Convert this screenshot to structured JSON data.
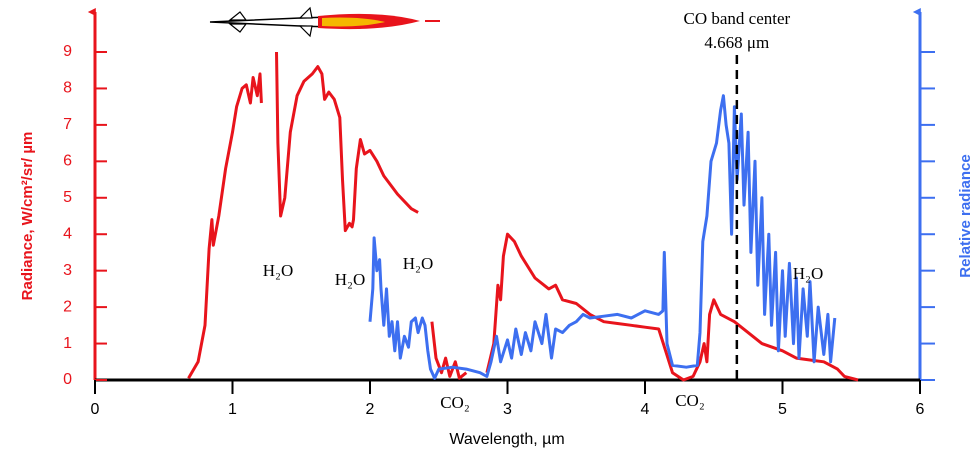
{
  "chart_data": {
    "type": "line",
    "y_label": "Radiance, W/cm²/sr/ µm",
    "y2_label": "Relative radiance",
    "x_label": "Wavelength, µm",
    "xlim": [
      0,
      6
    ],
    "xticks": [
      0,
      1,
      2,
      3,
      4,
      5,
      6
    ],
    "ylim": [
      0,
      9
    ],
    "yticks": [
      0,
      1,
      2,
      3,
      4,
      5,
      6,
      7,
      8,
      9
    ],
    "y2lim": [
      0,
      9
    ],
    "y2ticks": [
      0,
      1,
      2,
      3,
      4,
      5,
      6,
      7,
      8,
      9
    ],
    "y_color": "#e8141c",
    "y2_color": "#3d6ff0",
    "series": [
      {
        "color": "#e8141c",
        "x": [
          0.68,
          0.75,
          0.8,
          0.83,
          0.85,
          0.86,
          0.9,
          0.95,
          1.0,
          1.03,
          1.07,
          1.1,
          1.13,
          1.15,
          1.18,
          1.2,
          1.21,
          null,
          1.32,
          1.33,
          1.35,
          1.38,
          1.42,
          1.47,
          1.52,
          1.58,
          1.62,
          1.65,
          1.67,
          1.7,
          1.74,
          1.78,
          1.8,
          1.82,
          1.85,
          1.87,
          1.88,
          1.9,
          1.93,
          1.96,
          2.0,
          2.05,
          2.1,
          2.2,
          2.3,
          2.35,
          null,
          2.45,
          2.48,
          2.52,
          2.55,
          2.58,
          2.62,
          2.65,
          2.7,
          null,
          2.85,
          2.9,
          2.93,
          2.95,
          2.97,
          3.0,
          3.05,
          3.1,
          3.2,
          3.3,
          3.35,
          3.4,
          3.5,
          3.6,
          3.7,
          3.8,
          3.9,
          4.0,
          4.1,
          4.15,
          4.2,
          4.28,
          4.35,
          4.4,
          4.43,
          4.45,
          4.47,
          4.5,
          4.55,
          4.65,
          4.75,
          4.85,
          5.0,
          5.1,
          5.2,
          5.3,
          5.4,
          5.45,
          5.55
        ],
        "values": [
          0.05,
          0.5,
          1.5,
          3.6,
          4.4,
          3.7,
          4.5,
          5.8,
          6.8,
          7.5,
          8.0,
          8.1,
          7.6,
          8.3,
          7.8,
          8.4,
          7.6,
          null,
          9.0,
          6.5,
          4.5,
          5.0,
          6.8,
          7.8,
          8.2,
          8.4,
          8.6,
          8.4,
          7.7,
          7.9,
          7.7,
          7.2,
          5.5,
          4.1,
          4.3,
          4.2,
          4.4,
          5.8,
          6.6,
          6.2,
          6.3,
          6.0,
          5.6,
          5.1,
          4.7,
          4.6,
          null,
          1.6,
          0.6,
          0.2,
          0.6,
          0.1,
          0.5,
          0.05,
          0.2,
          null,
          0.2,
          1.0,
          2.6,
          2.2,
          3.4,
          4.0,
          3.8,
          3.4,
          2.8,
          2.5,
          2.6,
          2.2,
          2.1,
          1.8,
          1.6,
          1.55,
          1.5,
          1.45,
          1.4,
          0.8,
          0.2,
          0.0,
          0.1,
          0.5,
          1.0,
          0.5,
          1.8,
          2.2,
          1.8,
          1.6,
          1.3,
          1.0,
          0.8,
          0.6,
          0.55,
          0.5,
          0.3,
          0.1,
          0.0
        ]
      },
      {
        "color": "#3d6ff0",
        "axis": "y2",
        "x": [
          2.0,
          2.02,
          2.03,
          2.05,
          2.07,
          2.08,
          2.1,
          2.12,
          2.14,
          2.16,
          2.18,
          2.2,
          2.22,
          2.25,
          2.28,
          2.3,
          2.33,
          2.35,
          2.38,
          2.4,
          2.42,
          2.44,
          2.47,
          2.5,
          2.6,
          2.7,
          2.8,
          2.85,
          2.88,
          2.92,
          2.95,
          3.0,
          3.03,
          3.06,
          3.1,
          3.13,
          3.17,
          3.2,
          3.25,
          3.28,
          3.32,
          3.35,
          3.4,
          3.45,
          3.5,
          3.55,
          3.6,
          3.7,
          3.8,
          3.9,
          4.0,
          4.1,
          4.13,
          4.14,
          4.16,
          4.2,
          4.3,
          4.38,
          4.4,
          4.42,
          4.45,
          4.48,
          4.52,
          4.55,
          4.57,
          4.59,
          4.61,
          4.63,
          4.65,
          4.67,
          4.7,
          4.72,
          4.75,
          4.77,
          4.8,
          4.82,
          4.85,
          4.87,
          4.9,
          4.92,
          4.95,
          4.97,
          5.0,
          5.02,
          5.05,
          5.08,
          5.1,
          5.12,
          5.15,
          5.18,
          5.2,
          5.23,
          5.26,
          5.3,
          5.33,
          5.35,
          5.38
        ],
        "values": [
          1.6,
          2.5,
          3.9,
          3.0,
          3.3,
          2.5,
          1.5,
          2.5,
          1.2,
          1.6,
          0.8,
          1.6,
          0.6,
          1.2,
          0.9,
          1.6,
          1.7,
          1.3,
          1.7,
          1.5,
          0.8,
          0.3,
          0.05,
          0.3,
          0.35,
          0.3,
          0.2,
          0.1,
          0.5,
          1.2,
          0.5,
          1.1,
          0.6,
          1.4,
          0.7,
          1.3,
          0.8,
          1.6,
          1.0,
          1.8,
          0.6,
          1.4,
          1.3,
          1.5,
          1.6,
          1.8,
          1.7,
          1.75,
          1.8,
          1.7,
          1.9,
          1.8,
          1.9,
          3.5,
          1.0,
          0.4,
          0.35,
          0.4,
          1.3,
          3.8,
          4.5,
          6.0,
          6.5,
          7.4,
          7.8,
          7.0,
          6.5,
          4.0,
          7.5,
          5.5,
          7.3,
          4.8,
          6.8,
          3.5,
          6.0,
          2.6,
          5.0,
          1.8,
          4.0,
          1.5,
          3.5,
          0.8,
          3.0,
          1.2,
          3.2,
          1.0,
          2.8,
          0.6,
          2.5,
          1.2,
          2.7,
          0.5,
          2.0,
          0.7,
          1.8,
          0.5,
          1.7
        ]
      }
    ],
    "annotations": [
      {
        "text": "H₂O"
      },
      {
        "text": "H₂O"
      },
      {
        "text": "H₂O"
      },
      {
        "text": "H₂O"
      },
      {
        "text": "CO₂"
      },
      {
        "text": "CO₂"
      },
      {
        "text": "CO band center",
        "label": "4.668 μm",
        "x": 4.668
      }
    ]
  }
}
